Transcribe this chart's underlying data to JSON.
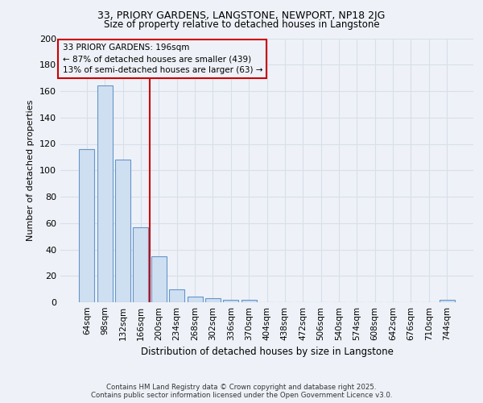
{
  "title_line1": "33, PRIORY GARDENS, LANGSTONE, NEWPORT, NP18 2JG",
  "title_line2": "Size of property relative to detached houses in Langstone",
  "xlabel": "Distribution of detached houses by size in Langstone",
  "ylabel": "Number of detached properties",
  "categories": [
    "64sqm",
    "98sqm",
    "132sqm",
    "166sqm",
    "200sqm",
    "234sqm",
    "268sqm",
    "302sqm",
    "336sqm",
    "370sqm",
    "404sqm",
    "438sqm",
    "472sqm",
    "506sqm",
    "540sqm",
    "574sqm",
    "608sqm",
    "642sqm",
    "676sqm",
    "710sqm",
    "744sqm"
  ],
  "values": [
    116,
    164,
    108,
    57,
    35,
    10,
    4,
    3,
    2,
    2,
    0,
    0,
    0,
    0,
    0,
    0,
    0,
    0,
    0,
    0,
    2
  ],
  "bar_color": "#cfdff2",
  "bar_edge_color": "#6496c8",
  "vline_x": 3.5,
  "annotation_line1": "33 PRIORY GARDENS: 196sqm",
  "annotation_line2": "← 87% of detached houses are smaller (439)",
  "annotation_line3": "13% of semi-detached houses are larger (63) →",
  "vline_color": "#cc0000",
  "annotation_box_edge_color": "#cc0000",
  "background_color": "#eef2f8",
  "grid_color": "#d8dfe8",
  "ylim": [
    0,
    200
  ],
  "yticks": [
    0,
    20,
    40,
    60,
    80,
    100,
    120,
    140,
    160,
    180,
    200
  ],
  "footer_line1": "Contains HM Land Registry data © Crown copyright and database right 2025.",
  "footer_line2": "Contains public sector information licensed under the Open Government Licence v3.0."
}
